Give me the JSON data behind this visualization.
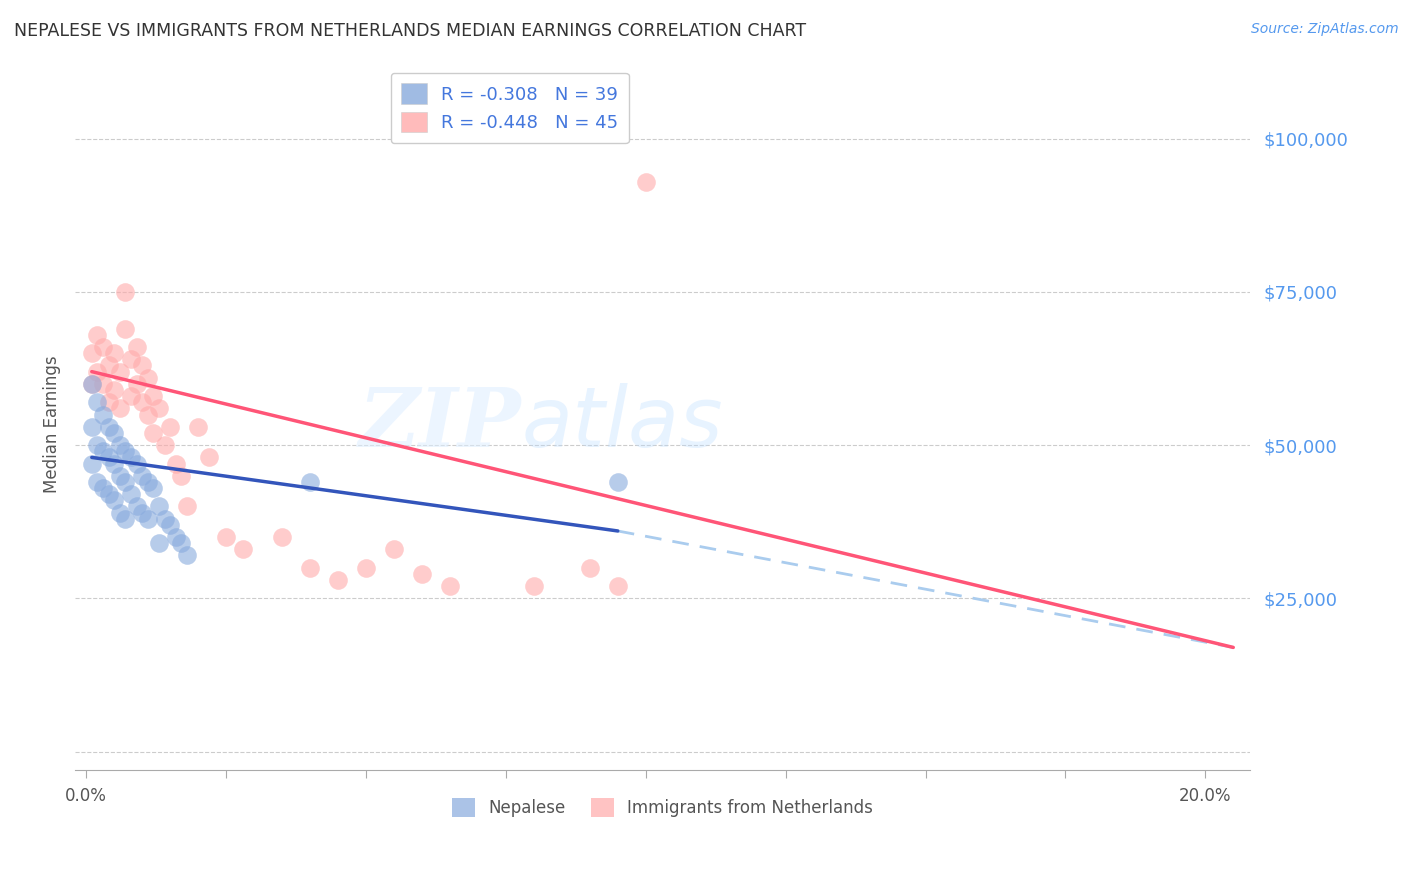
{
  "title": "NEPALESE VS IMMIGRANTS FROM NETHERLANDS MEDIAN EARNINGS CORRELATION CHART",
  "source": "Source: ZipAtlas.com",
  "ylabel": "Median Earnings",
  "x_ticks": [
    0.0,
    0.025,
    0.05,
    0.075,
    0.1,
    0.125,
    0.15,
    0.175,
    0.2
  ],
  "x_tick_labels": [
    "0.0%",
    "",
    "",
    "",
    "",
    "",
    "",
    "",
    "20.0%"
  ],
  "y_tick_values": [
    0,
    25000,
    50000,
    75000,
    100000
  ],
  "y_tick_labels": [
    "",
    "$25,000",
    "$50,000",
    "$75,000",
    "$100,000"
  ],
  "xmin": -0.002,
  "xmax": 0.208,
  "ymin": -3000,
  "ymax": 110000,
  "watermark_zip": "ZIP",
  "watermark_atlas": "atlas",
  "legend_entry1": "R = -0.308   N = 39",
  "legend_entry2": "R = -0.448   N = 45",
  "legend_label1": "Nepalese",
  "legend_label2": "Immigrants from Netherlands",
  "blue_scatter_color": "#88AADD",
  "pink_scatter_color": "#FFAAAA",
  "blue_line_color": "#3355BB",
  "pink_line_color": "#FF5577",
  "dashed_line_color": "#AACCEE",
  "grid_color": "#CCCCCC",
  "nepalese_x": [
    0.001,
    0.001,
    0.001,
    0.002,
    0.002,
    0.002,
    0.003,
    0.003,
    0.003,
    0.004,
    0.004,
    0.004,
    0.005,
    0.005,
    0.005,
    0.006,
    0.006,
    0.006,
    0.007,
    0.007,
    0.007,
    0.008,
    0.008,
    0.009,
    0.009,
    0.01,
    0.01,
    0.011,
    0.011,
    0.012,
    0.013,
    0.013,
    0.014,
    0.015,
    0.016,
    0.017,
    0.018,
    0.04,
    0.095
  ],
  "nepalese_y": [
    60000,
    53000,
    47000,
    57000,
    50000,
    44000,
    55000,
    49000,
    43000,
    53000,
    48000,
    42000,
    52000,
    47000,
    41000,
    50000,
    45000,
    39000,
    49000,
    44000,
    38000,
    48000,
    42000,
    47000,
    40000,
    45000,
    39000,
    44000,
    38000,
    43000,
    40000,
    34000,
    38000,
    37000,
    35000,
    34000,
    32000,
    44000,
    44000
  ],
  "netherlands_x": [
    0.001,
    0.001,
    0.002,
    0.002,
    0.003,
    0.003,
    0.004,
    0.004,
    0.005,
    0.005,
    0.006,
    0.006,
    0.007,
    0.007,
    0.008,
    0.008,
    0.009,
    0.009,
    0.01,
    0.01,
    0.011,
    0.011,
    0.012,
    0.012,
    0.013,
    0.014,
    0.015,
    0.016,
    0.017,
    0.018,
    0.02,
    0.022,
    0.025,
    0.028,
    0.035,
    0.04,
    0.045,
    0.05,
    0.055,
    0.06,
    0.065,
    0.08,
    0.09,
    0.095,
    0.1
  ],
  "netherlands_y": [
    65000,
    60000,
    68000,
    62000,
    66000,
    60000,
    63000,
    57000,
    65000,
    59000,
    62000,
    56000,
    75000,
    69000,
    64000,
    58000,
    66000,
    60000,
    63000,
    57000,
    61000,
    55000,
    58000,
    52000,
    56000,
    50000,
    53000,
    47000,
    45000,
    40000,
    53000,
    48000,
    35000,
    33000,
    35000,
    30000,
    28000,
    30000,
    33000,
    29000,
    27000,
    27000,
    30000,
    27000,
    93000
  ],
  "blue_line_x0": 0.001,
  "blue_line_x1": 0.095,
  "blue_line_y0": 48000,
  "blue_line_y1": 36000,
  "pink_line_x0": 0.001,
  "pink_line_x1": 0.205,
  "pink_line_y0": 62000,
  "pink_line_y1": 17000,
  "dash_line_x0": 0.095,
  "dash_line_x1": 0.205,
  "dash_line_y0": 36000,
  "dash_line_y1": 17000
}
